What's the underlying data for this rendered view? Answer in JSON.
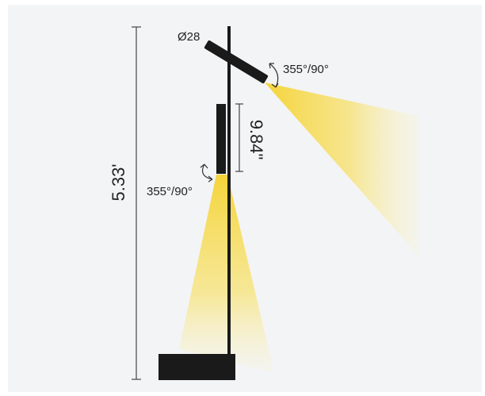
{
  "diagram": {
    "total_height_label": "5.33'",
    "head_length_label": "9.84\"",
    "diameter_label": "Ø28",
    "upper_rotation_label": "355°/90°",
    "lower_rotation_label": "355°/90°",
    "colors": {
      "background": "#f3f4f6",
      "fixture": "#1a1a1a",
      "dimension_line": "#444444",
      "light_beam": "#f4d63c"
    }
  }
}
